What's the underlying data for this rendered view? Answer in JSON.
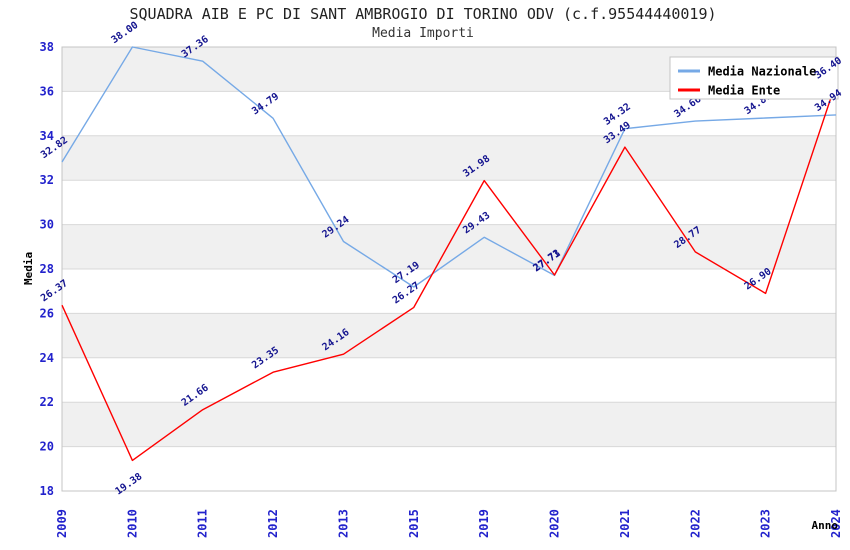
{
  "chart": {
    "title": "SQUADRA AIB E PC DI SANT AMBROGIO DI TORINO ODV (c.f.95544440019)",
    "subtitle": "Media Importi"
  },
  "chart_data": {
    "type": "line",
    "title": "SQUADRA AIB E PC DI SANT AMBROGIO DI TORINO ODV (c.f.95544440019)",
    "subtitle": "Media Importi",
    "xlabel": "Anno",
    "ylabel": "Media",
    "x": [
      "2009",
      "2010",
      "2011",
      "2012",
      "2013",
      "2015",
      "2019",
      "2020",
      "2021",
      "2022",
      "2023",
      "2024"
    ],
    "ylim": [
      18,
      38
    ],
    "ytick_step": 2,
    "y_ticks": [
      18,
      20,
      22,
      24,
      26,
      28,
      30,
      32,
      34,
      36,
      38
    ],
    "grid": "horizontal alternating bands",
    "legend_position": "top-right",
    "series": [
      {
        "name": "Media Nazionale",
        "color": "#76a9e6",
        "values": [
          32.82,
          38.0,
          37.36,
          34.79,
          29.24,
          27.19,
          29.43,
          27.71,
          34.32,
          34.66,
          34.8,
          34.94
        ]
      },
      {
        "name": "Media Ente",
        "color": "#ff0000",
        "values": [
          26.37,
          19.38,
          21.66,
          23.35,
          24.16,
          26.27,
          31.98,
          27.73,
          33.49,
          28.77,
          26.9,
          36.4
        ]
      }
    ],
    "colors": {
      "tick_label": "#2222cc",
      "point_label": "#14148f",
      "band": "#f0f0f0",
      "grid": "#d8d8d8",
      "border": "#c4c4c4",
      "axis_label": "#000000",
      "legend_text": "#000000",
      "legend_bg": "#ffffff"
    }
  }
}
